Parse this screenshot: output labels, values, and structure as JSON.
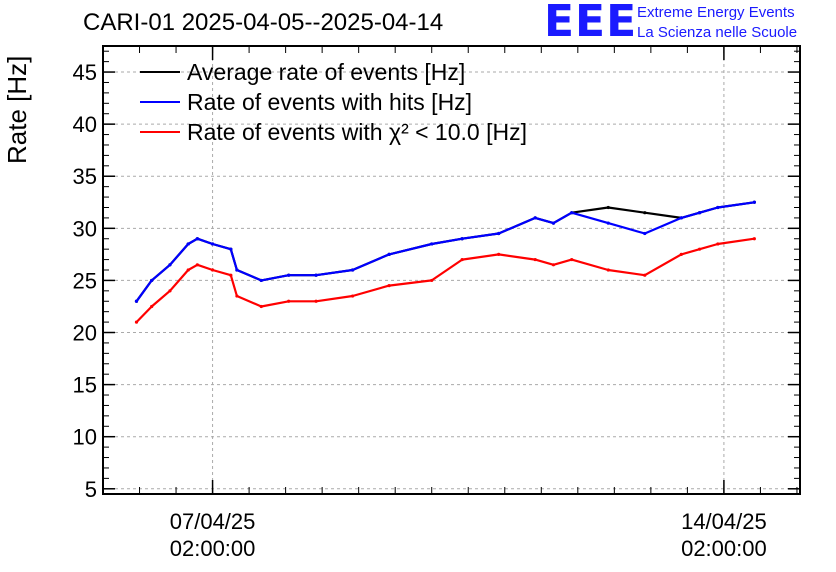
{
  "header": {
    "title": "CARI-01 2025-04-05--2025-04-14",
    "logo_text": "EEE",
    "org_line1": "Extreme Energy Events",
    "org_line2": "La Scienza nelle Scuole"
  },
  "colors": {
    "average": "#000000",
    "hits": "#0000ff",
    "chi2": "#ff0000",
    "logo": "#1a1aff",
    "grid": "#aaaaaa"
  },
  "chart_data": {
    "type": "line",
    "title": "CARI-01 2025-04-05--2025-04-14",
    "ylabel": "Rate [Hz]",
    "xlabel": "",
    "ylim": [
      4.5,
      47.5
    ],
    "xlim": [
      "2025-04-05T14:00",
      "2025-04-15T03:00"
    ],
    "yticks": [
      5,
      10,
      15,
      20,
      25,
      30,
      35,
      40,
      45
    ],
    "xticks": [
      {
        "x": "2025-04-07T02:00",
        "label1": "07/04/25",
        "label2": "02:00:00"
      },
      {
        "x": "2025-04-14T02:00",
        "label1": "14/04/25",
        "label2": "02:00:00"
      }
    ],
    "grid": true,
    "legend_position": "top-left",
    "series": [
      {
        "name": "Average rate of events [Hz]",
        "color": "#000000",
        "x": [
          "2025-04-06T01:00",
          "2025-04-06T06:00",
          "2025-04-06T12:00",
          "2025-04-06T18:00",
          "2025-04-06T21:00",
          "2025-04-07T02:00",
          "2025-04-07T08:00",
          "2025-04-07T10:00",
          "2025-04-07T18:00",
          "2025-04-08T03:00",
          "2025-04-08T12:00",
          "2025-04-09T00:00",
          "2025-04-09T12:00",
          "2025-04-10T02:00",
          "2025-04-10T12:00",
          "2025-04-11T00:00",
          "2025-04-11T12:00",
          "2025-04-11T18:00",
          "2025-04-12T00:00",
          "2025-04-12T12:00",
          "2025-04-13T00:00",
          "2025-04-13T12:00",
          "2025-04-13T18:00",
          "2025-04-14T00:00",
          "2025-04-14T12:00"
        ],
        "y": [
          23,
          25,
          26.5,
          28.5,
          29,
          28.5,
          28,
          26,
          25,
          25.5,
          25.5,
          26,
          27.5,
          28.5,
          29,
          29.5,
          31,
          30.5,
          31.5,
          32,
          31.5,
          31,
          31.5,
          32,
          32.5
        ]
      },
      {
        "name": "Rate of events with hits [Hz]",
        "color": "#0000ff",
        "x": [
          "2025-04-06T01:00",
          "2025-04-06T06:00",
          "2025-04-06T12:00",
          "2025-04-06T18:00",
          "2025-04-06T21:00",
          "2025-04-07T02:00",
          "2025-04-07T08:00",
          "2025-04-07T10:00",
          "2025-04-07T18:00",
          "2025-04-08T03:00",
          "2025-04-08T12:00",
          "2025-04-09T00:00",
          "2025-04-09T12:00",
          "2025-04-10T02:00",
          "2025-04-10T12:00",
          "2025-04-11T00:00",
          "2025-04-11T12:00",
          "2025-04-11T18:00",
          "2025-04-12T00:00",
          "2025-04-12T12:00",
          "2025-04-13T00:00",
          "2025-04-13T12:00",
          "2025-04-13T18:00",
          "2025-04-14T00:00",
          "2025-04-14T12:00"
        ],
        "y": [
          23,
          25,
          26.5,
          28.5,
          29,
          28.5,
          28,
          26,
          25,
          25.5,
          25.5,
          26,
          27.5,
          28.5,
          29,
          29.5,
          31,
          30.5,
          31.5,
          30.5,
          29.5,
          31,
          31.5,
          32,
          32.5
        ]
      },
      {
        "name": "Rate of events with χ² < 10.0 [Hz]",
        "color": "#ff0000",
        "x": [
          "2025-04-06T01:00",
          "2025-04-06T06:00",
          "2025-04-06T12:00",
          "2025-04-06T18:00",
          "2025-04-06T21:00",
          "2025-04-07T02:00",
          "2025-04-07T08:00",
          "2025-04-07T10:00",
          "2025-04-07T18:00",
          "2025-04-08T03:00",
          "2025-04-08T12:00",
          "2025-04-09T00:00",
          "2025-04-09T12:00",
          "2025-04-10T02:00",
          "2025-04-10T12:00",
          "2025-04-11T00:00",
          "2025-04-11T12:00",
          "2025-04-11T18:00",
          "2025-04-12T00:00",
          "2025-04-12T12:00",
          "2025-04-13T00:00",
          "2025-04-13T12:00",
          "2025-04-13T18:00",
          "2025-04-14T00:00",
          "2025-04-14T12:00"
        ],
        "y": [
          21,
          22.5,
          24,
          26,
          26.5,
          26,
          25.5,
          23.5,
          22.5,
          23,
          23,
          23.5,
          24.5,
          25,
          27,
          27.5,
          27,
          26.5,
          27,
          26,
          25.5,
          27.5,
          28,
          28.5,
          29
        ]
      }
    ]
  }
}
